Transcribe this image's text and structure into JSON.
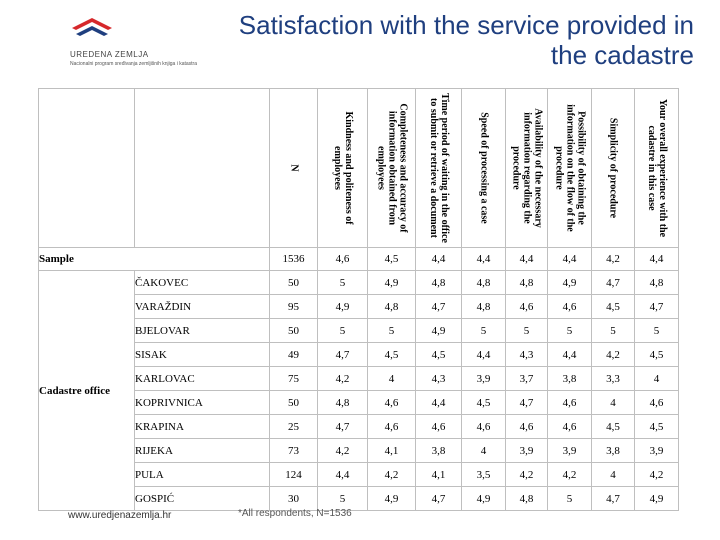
{
  "header": {
    "title": "Satisfaction with the service provided in the cadastre",
    "logo_name": "UREDENA ZEMLJA",
    "logo_subtitle": "Nacionalni program sređivanja zemljišnih knjiga i katastra"
  },
  "table": {
    "column_headers": [
      "N",
      "Kindness and politeness of employees",
      "Completeness and accuracy of information obtained from employees",
      "Time period of waiting in the office to submit or retrieve a document",
      "Speed of processing a case",
      "Availability of the necessary information regarding the procedure",
      "Possibility of obtaining the information on the flow of the procedure",
      "Simplicity of procedure",
      "Your overall experience with the cadastre in this case"
    ],
    "sample": {
      "label": "Sample",
      "values": [
        "1536",
        "4,6",
        "4,5",
        "4,4",
        "4,4",
        "4,4",
        "4,4",
        "4,2",
        "4,4"
      ]
    },
    "group_label": "Cadastre office",
    "offices": [
      {
        "name": "ČAKOVEC",
        "values": [
          "50",
          "5",
          "4,9",
          "4,8",
          "4,8",
          "4,8",
          "4,9",
          "4,7",
          "4,8"
        ]
      },
      {
        "name": "VARAŽDIN",
        "values": [
          "95",
          "4,9",
          "4,8",
          "4,7",
          "4,8",
          "4,6",
          "4,6",
          "4,5",
          "4,7"
        ]
      },
      {
        "name": "BJELOVAR",
        "values": [
          "50",
          "5",
          "5",
          "4,9",
          "5",
          "5",
          "5",
          "5",
          "5"
        ]
      },
      {
        "name": "SISAK",
        "values": [
          "49",
          "4,7",
          "4,5",
          "4,5",
          "4,4",
          "4,3",
          "4,4",
          "4,2",
          "4,5"
        ]
      },
      {
        "name": "KARLOVAC",
        "values": [
          "75",
          "4,2",
          "4",
          "4,3",
          "3,9",
          "3,7",
          "3,8",
          "3,3",
          "4"
        ]
      },
      {
        "name": "KOPRIVNICA",
        "values": [
          "50",
          "4,8",
          "4,6",
          "4,4",
          "4,5",
          "4,7",
          "4,6",
          "4",
          "4,6"
        ]
      },
      {
        "name": "KRAPINA",
        "values": [
          "25",
          "4,7",
          "4,6",
          "4,6",
          "4,6",
          "4,6",
          "4,6",
          "4,5",
          "4,5"
        ]
      },
      {
        "name": "RIJEKA",
        "values": [
          "73",
          "4,2",
          "4,1",
          "3,8",
          "4",
          "3,9",
          "3,9",
          "3,8",
          "3,9"
        ]
      },
      {
        "name": "PULA",
        "values": [
          "124",
          "4,4",
          "4,2",
          "4,1",
          "3,5",
          "4,2",
          "4,2",
          "4",
          "4,2"
        ]
      },
      {
        "name": "GOSPIĆ",
        "values": [
          "30",
          "5",
          "4,9",
          "4,7",
          "4,9",
          "4,8",
          "5",
          "4,7",
          "4,9"
        ]
      }
    ]
  },
  "footer": {
    "url": "www.uredjenazemlja.hr",
    "footnote": "*All respondents, N=1536"
  },
  "colors": {
    "title": "#1f3f7f",
    "logo_red": "#d6282b",
    "logo_blue": "#1f3f7f",
    "grid": "#bfbfbf"
  }
}
